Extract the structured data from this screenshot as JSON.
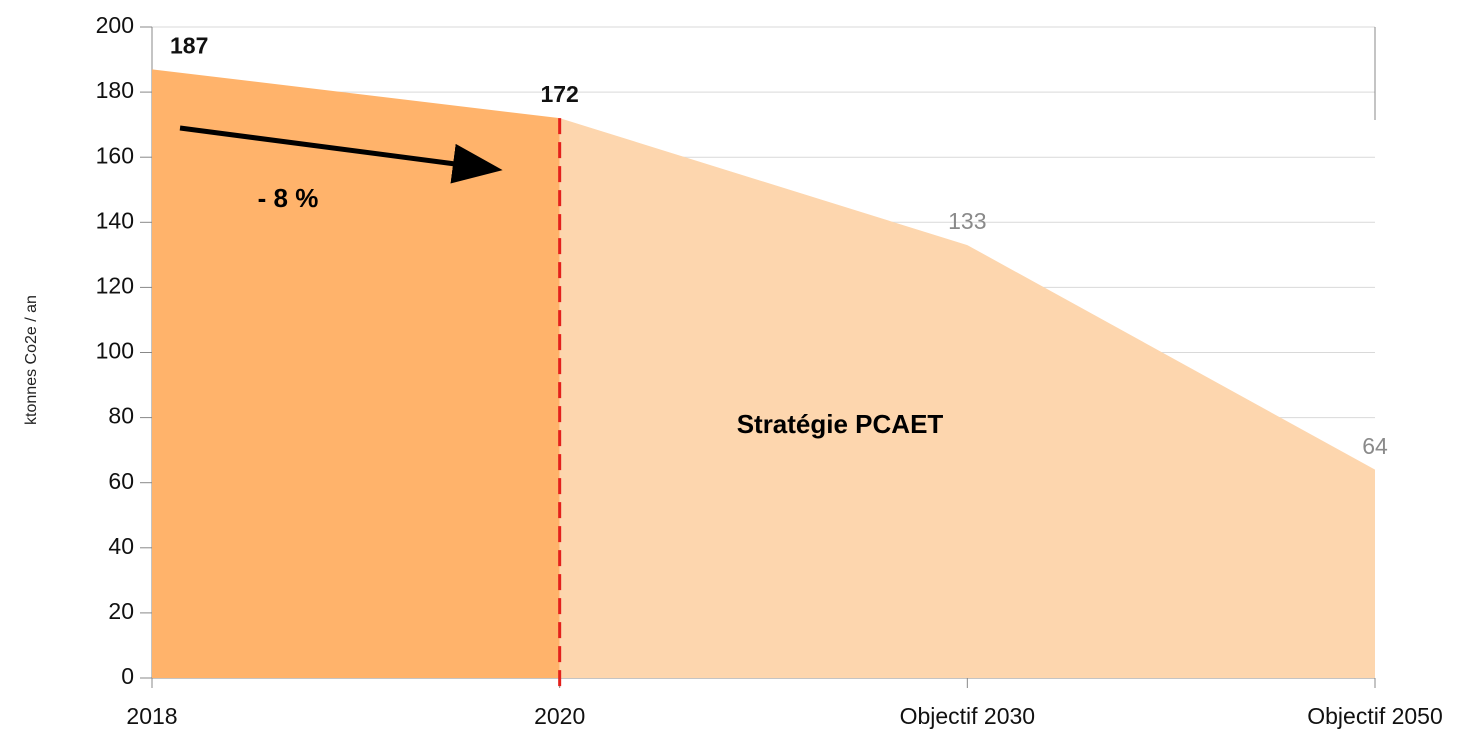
{
  "chart_data": {
    "type": "area",
    "y_label": "ktonnes Co2e / an",
    "categories": [
      "2018",
      "2020",
      "Objectif 2030",
      "Objectif 2050"
    ],
    "series": [
      {
        "color": "#ffb36b",
        "label_color": "#111111",
        "values": [
          187,
          172,
          null,
          null
        ]
      },
      {
        "color": "#fdd6ae",
        "label_color": "#8a8a8a",
        "values": [
          null,
          172,
          133,
          64
        ]
      }
    ],
    "ylim": [
      0,
      200
    ],
    "yticks": [
      0,
      20,
      40,
      60,
      80,
      100,
      120,
      140,
      160,
      180,
      200
    ],
    "grid": true,
    "annotations": [
      {
        "text": "- 8 %"
      },
      {
        "text": "Stratégie PCAET"
      }
    ]
  }
}
